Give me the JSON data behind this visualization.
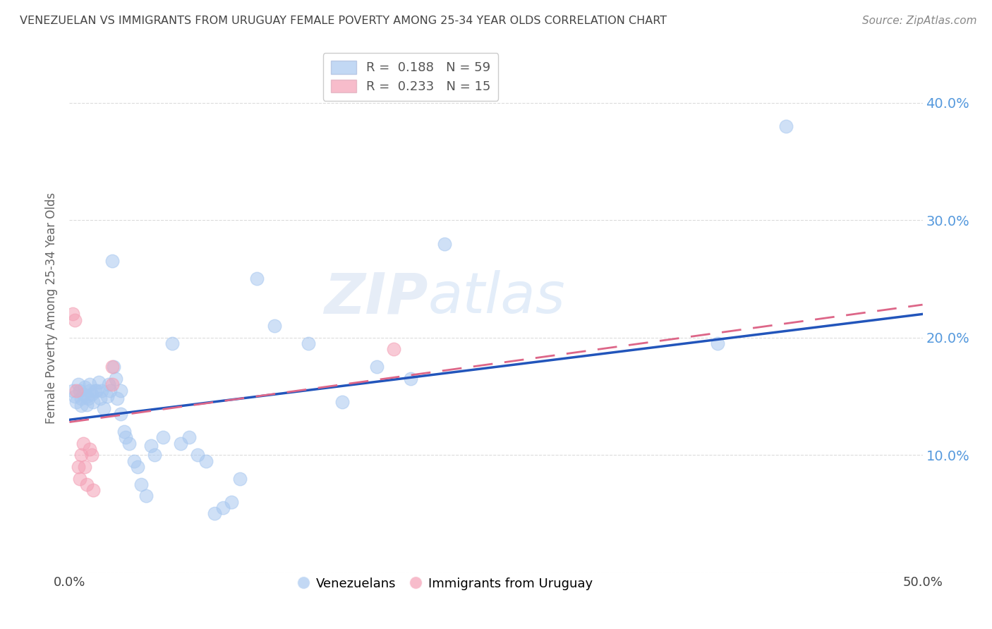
{
  "title": "VENEZUELAN VS IMMIGRANTS FROM URUGUAY FEMALE POVERTY AMONG 25-34 YEAR OLDS CORRELATION CHART",
  "source": "Source: ZipAtlas.com",
  "ylabel": "Female Poverty Among 25-34 Year Olds",
  "xlim": [
    0.0,
    0.5
  ],
  "ylim": [
    0.0,
    0.45
  ],
  "xticks": [
    0.0,
    0.1,
    0.2,
    0.3,
    0.4,
    0.5
  ],
  "yticks": [
    0.0,
    0.1,
    0.2,
    0.3,
    0.4
  ],
  "ytick_labels": [
    "",
    "10.0%",
    "20.0%",
    "30.0%",
    "40.0%"
  ],
  "xtick_labels": [
    "0.0%",
    "",
    "",
    "",
    "",
    "50.0%"
  ],
  "venezuelans_color": "#a8c8f0",
  "uruguay_color": "#f4a0b5",
  "reg_line_ven_color": "#2255bb",
  "reg_line_uru_color": "#dd6688",
  "watermark_zip": "ZIP",
  "watermark_atlas": "atlas",
  "venezuelans_x": [
    0.002,
    0.003,
    0.004,
    0.005,
    0.006,
    0.007,
    0.007,
    0.008,
    0.009,
    0.01,
    0.01,
    0.011,
    0.012,
    0.012,
    0.013,
    0.014,
    0.015,
    0.016,
    0.017,
    0.018,
    0.019,
    0.02,
    0.022,
    0.023,
    0.024,
    0.025,
    0.026,
    0.027,
    0.028,
    0.03,
    0.03,
    0.032,
    0.033,
    0.035,
    0.038,
    0.04,
    0.042,
    0.045,
    0.048,
    0.05,
    0.055,
    0.06,
    0.065,
    0.07,
    0.075,
    0.08,
    0.085,
    0.09,
    0.095,
    0.1,
    0.11,
    0.12,
    0.14,
    0.16,
    0.18,
    0.2,
    0.22,
    0.38,
    0.42
  ],
  "venezuelans_y": [
    0.155,
    0.15,
    0.145,
    0.16,
    0.155,
    0.148,
    0.142,
    0.152,
    0.158,
    0.15,
    0.143,
    0.148,
    0.155,
    0.16,
    0.152,
    0.145,
    0.155,
    0.155,
    0.162,
    0.148,
    0.155,
    0.14,
    0.15,
    0.16,
    0.155,
    0.265,
    0.175,
    0.165,
    0.148,
    0.155,
    0.135,
    0.12,
    0.115,
    0.11,
    0.095,
    0.09,
    0.075,
    0.065,
    0.108,
    0.1,
    0.115,
    0.195,
    0.11,
    0.115,
    0.1,
    0.095,
    0.05,
    0.055,
    0.06,
    0.08,
    0.25,
    0.21,
    0.195,
    0.145,
    0.175,
    0.165,
    0.28,
    0.195,
    0.38
  ],
  "uruguay_x": [
    0.002,
    0.003,
    0.004,
    0.005,
    0.006,
    0.007,
    0.008,
    0.009,
    0.01,
    0.012,
    0.013,
    0.014,
    0.025,
    0.025,
    0.19
  ],
  "uruguay_y": [
    0.22,
    0.215,
    0.155,
    0.09,
    0.08,
    0.1,
    0.11,
    0.09,
    0.075,
    0.105,
    0.1,
    0.07,
    0.175,
    0.16,
    0.19
  ],
  "background_color": "#ffffff",
  "grid_color": "#cccccc",
  "title_color": "#444444",
  "axis_label_color": "#666666",
  "tick_label_color_right": "#5599dd",
  "tick_label_color_bottom": "#444444",
  "source_color": "#888888",
  "reg_line_ven_intercept": 0.13,
  "reg_line_ven_slope": 0.18,
  "reg_line_uru_intercept": 0.128,
  "reg_line_uru_slope": 0.2
}
